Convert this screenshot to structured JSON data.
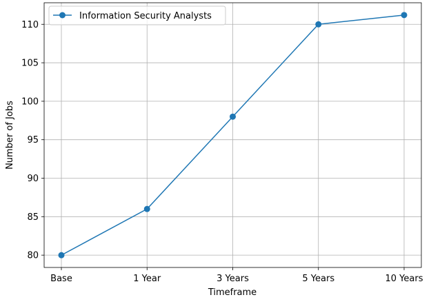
{
  "chart_data": {
    "type": "line",
    "title": "",
    "xlabel": "Timeframe",
    "ylabel": "Number of Jobs",
    "categories": [
      "Base",
      "1 Year",
      "3 Years",
      "5 Years",
      "10 Years"
    ],
    "series": [
      {
        "name": "Information Security Analysts",
        "values": [
          80,
          86,
          98,
          110,
          111.2
        ],
        "color": "#1f77b4",
        "marker": "circle"
      }
    ],
    "ylim": [
      78.4,
      112.8
    ],
    "yticks": [
      80,
      85,
      90,
      95,
      100,
      105,
      110
    ],
    "grid": true,
    "legend_position": "top-left"
  }
}
